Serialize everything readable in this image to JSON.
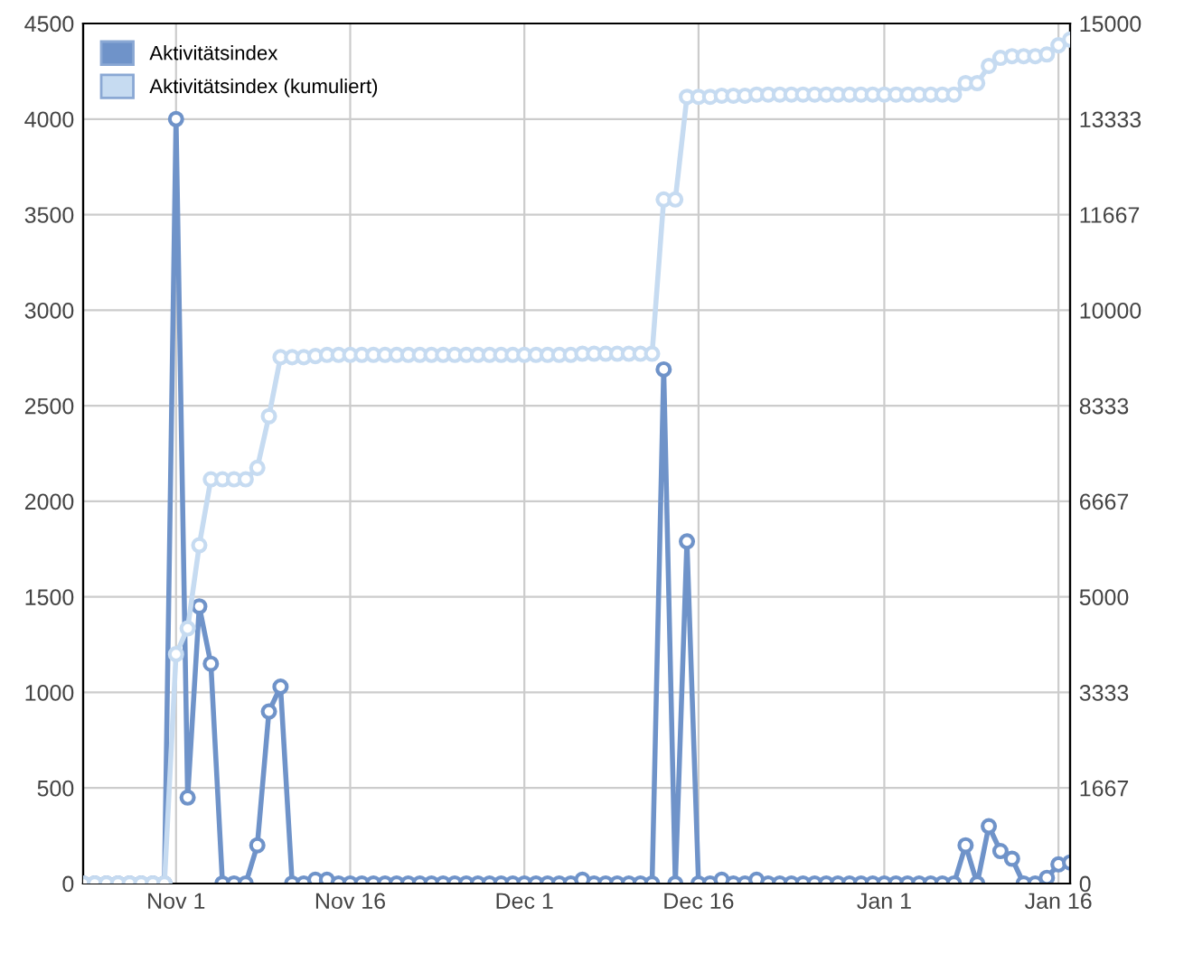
{
  "chart_data": {
    "type": "line",
    "categories": [
      null,
      null,
      null,
      null,
      null,
      null,
      null,
      null,
      "Nov 1",
      null,
      null,
      null,
      null,
      null,
      null,
      null,
      null,
      null,
      null,
      null,
      null,
      null,
      null,
      "Nov 16",
      null,
      null,
      null,
      null,
      null,
      null,
      null,
      null,
      null,
      null,
      null,
      null,
      null,
      null,
      "Dec 1",
      null,
      null,
      null,
      null,
      null,
      null,
      null,
      null,
      null,
      null,
      null,
      null,
      null,
      null,
      "Dec 16",
      null,
      null,
      null,
      null,
      null,
      null,
      null,
      null,
      null,
      null,
      null,
      null,
      null,
      null,
      null,
      "Jan 1",
      null,
      null,
      null,
      null,
      null,
      null,
      null,
      null,
      null,
      null,
      null,
      null,
      null,
      null,
      "Jan 16",
      null
    ],
    "series": [
      {
        "name": "Aktivitätsindex",
        "color": "#6f93c9",
        "values": [
          0,
          0,
          0,
          0,
          0,
          0,
          0,
          0,
          4000,
          450,
          1450,
          1150,
          0,
          0,
          0,
          200,
          900,
          1030,
          0,
          0,
          20,
          20,
          0,
          0,
          0,
          0,
          0,
          0,
          0,
          0,
          0,
          0,
          0,
          0,
          0,
          0,
          0,
          0,
          0,
          0,
          0,
          0,
          0,
          20,
          0,
          0,
          0,
          0,
          0,
          0,
          2690,
          0,
          1790,
          0,
          0,
          20,
          0,
          0,
          20,
          0,
          0,
          0,
          0,
          0,
          0,
          0,
          0,
          0,
          0,
          0,
          0,
          0,
          0,
          0,
          0,
          0,
          200,
          0,
          300,
          170,
          130,
          0,
          0,
          30,
          100,
          110
        ]
      },
      {
        "name": "Aktivitätsindex (kumuliert)",
        "color": "#c6dbf1",
        "axis": "y2",
        "values": [
          0,
          0,
          0,
          0,
          0,
          0,
          0,
          0,
          4000,
          4450,
          5900,
          7050,
          7050,
          7050,
          7050,
          7250,
          8150,
          9180,
          9180,
          9180,
          9200,
          9220,
          9220,
          9220,
          9220,
          9220,
          9220,
          9220,
          9220,
          9220,
          9220,
          9220,
          9220,
          9220,
          9220,
          9220,
          9220,
          9220,
          9220,
          9220,
          9220,
          9220,
          9220,
          9240,
          9240,
          9240,
          9240,
          9240,
          9240,
          9240,
          11930,
          11930,
          13720,
          13720,
          13720,
          13740,
          13740,
          13740,
          13760,
          13760,
          13760,
          13760,
          13760,
          13760,
          13760,
          13760,
          13760,
          13760,
          13760,
          13760,
          13760,
          13760,
          13760,
          13760,
          13760,
          13760,
          13960,
          13960,
          14260,
          14400,
          14430,
          14430,
          14430,
          14460,
          14620,
          14720
        ]
      }
    ],
    "ylim": [
      0,
      4500
    ],
    "yticks": [
      0,
      500,
      1000,
      1500,
      2000,
      2500,
      3000,
      3500,
      4000,
      4500
    ],
    "y2lim": [
      0,
      15000
    ],
    "y2ticks": [
      0,
      1667,
      3333,
      5000,
      6667,
      8333,
      10000,
      11667,
      13333,
      15000
    ],
    "grid": true,
    "legend": "top left",
    "marker": "circle",
    "line_style": "solid"
  }
}
